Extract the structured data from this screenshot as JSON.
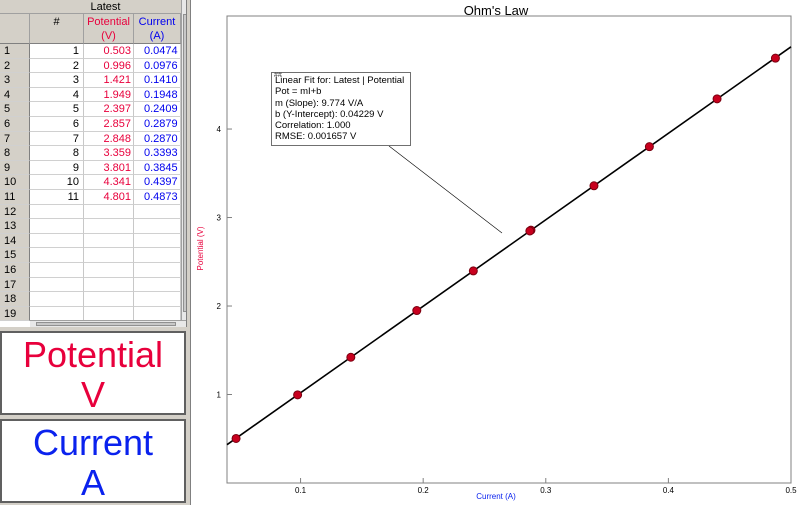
{
  "table": {
    "group_title": "Latest",
    "columns": {
      "index": "#",
      "potential_name": "Potential",
      "potential_unit": "(V)",
      "current_name": "Current",
      "current_unit": "(A)"
    },
    "row_numbers": [
      "1",
      "2",
      "3",
      "4",
      "5",
      "6",
      "7",
      "8",
      "9",
      "10",
      "11",
      "12",
      "13",
      "14",
      "15",
      "16",
      "17",
      "18",
      "19"
    ],
    "rows": [
      {
        "n": "1",
        "potential": "0.503",
        "current": "0.0474"
      },
      {
        "n": "2",
        "potential": "0.996",
        "current": "0.0976"
      },
      {
        "n": "3",
        "potential": "1.421",
        "current": "0.1410"
      },
      {
        "n": "4",
        "potential": "1.949",
        "current": "0.1948"
      },
      {
        "n": "5",
        "potential": "2.397",
        "current": "0.2409"
      },
      {
        "n": "6",
        "potential": "2.857",
        "current": "0.2879"
      },
      {
        "n": "7",
        "potential": "2.848",
        "current": "0.2870"
      },
      {
        "n": "8",
        "potential": "3.359",
        "current": "0.3393"
      },
      {
        "n": "9",
        "potential": "3.801",
        "current": "0.3845"
      },
      {
        "n": "10",
        "potential": "4.341",
        "current": "0.4397"
      },
      {
        "n": "11",
        "potential": "4.801",
        "current": "0.4873"
      }
    ]
  },
  "meters": {
    "potential": {
      "name": "Potential",
      "unit": "V"
    },
    "current": {
      "name": "Current",
      "unit": "A"
    }
  },
  "fit_box": {
    "grip": "##",
    "line1": "Linear Fit for: Latest | Potential",
    "line2": "Pot = mI+b",
    "line3": "m (Slope): 9.774 V/A",
    "line4": "b (Y-Intercept): 0.04229 V",
    "line5": "Correlation: 1.000",
    "line6": "RMSE: 0.001657 V"
  },
  "colors": {
    "potential": "#e8003c",
    "current": "#0a22ee",
    "point": "#c8001e",
    "fit_line": "#000000",
    "axis": "#808080"
  },
  "chart_data": {
    "type": "scatter",
    "title": "Ohm's Law",
    "xlabel": "Current (A)",
    "ylabel": "Potential (V)",
    "xlim": [
      0.04,
      0.5
    ],
    "ylim": [
      0,
      5.3
    ],
    "x_ticks": [
      0.1,
      0.2,
      0.3,
      0.4,
      0.5
    ],
    "x_tick_labels": [
      "0.1",
      "0.2",
      "0.3",
      "0.4",
      "0.5"
    ],
    "y_ticks": [
      1,
      2,
      3,
      4
    ],
    "y_tick_labels": [
      "1",
      "2",
      "3",
      "4"
    ],
    "grid": false,
    "series": [
      {
        "name": "Potential",
        "x": [
          0.0474,
          0.0976,
          0.141,
          0.1948,
          0.2409,
          0.2879,
          0.287,
          0.3393,
          0.3845,
          0.4397,
          0.4873
        ],
        "y": [
          0.503,
          0.996,
          1.421,
          1.949,
          2.397,
          2.857,
          2.848,
          3.359,
          3.801,
          4.341,
          4.801
        ]
      }
    ],
    "fit": {
      "type": "linear",
      "slope": 9.774,
      "intercept": 0.04229
    }
  }
}
